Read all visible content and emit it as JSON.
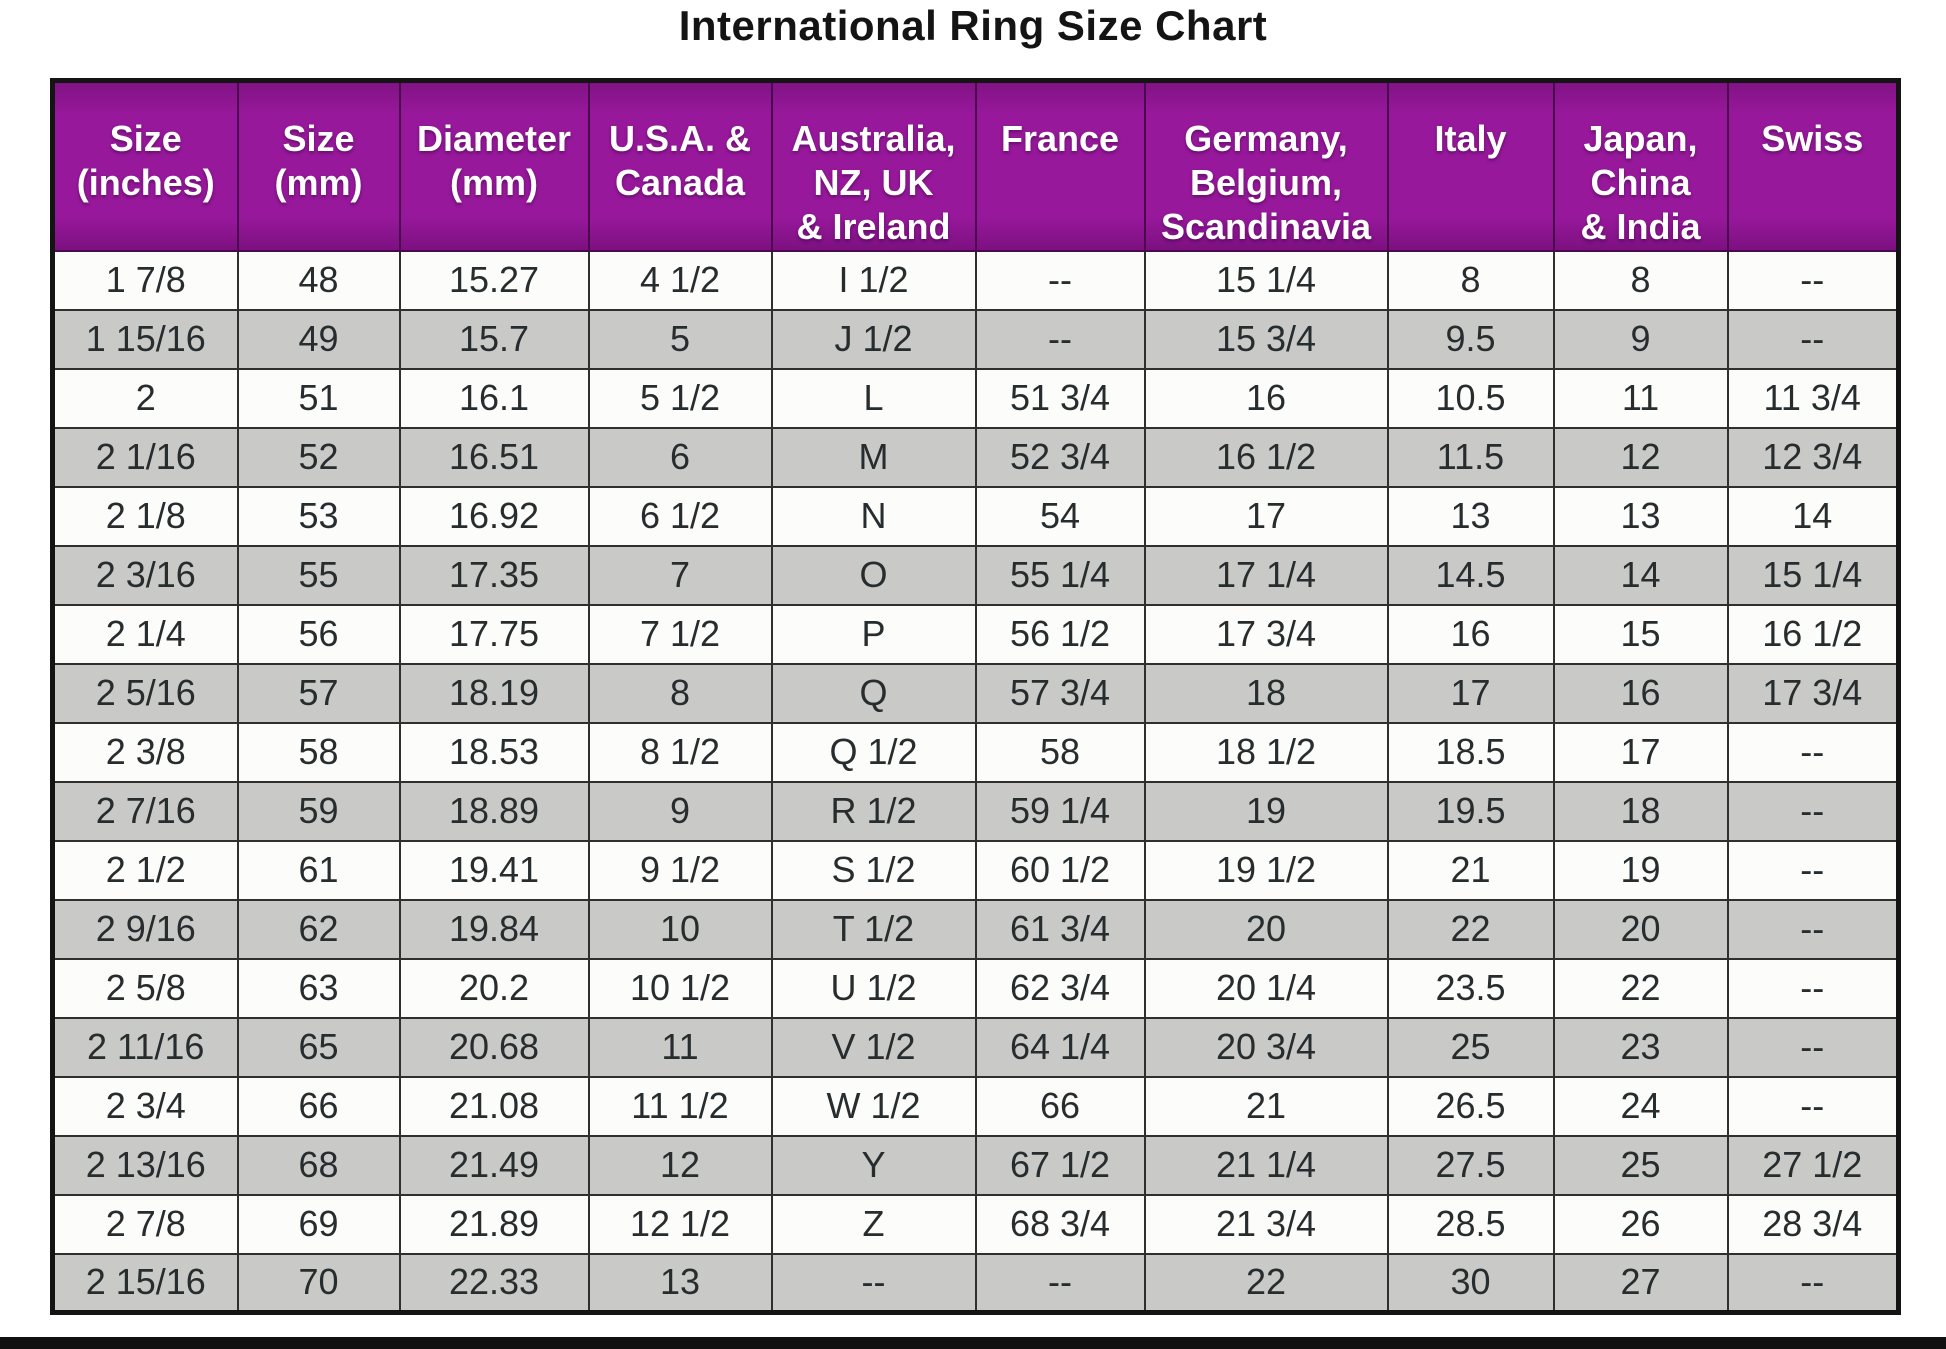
{
  "title": "International Ring Size Chart",
  "colors": {
    "header_bg": "#97189B",
    "header_text": "#FFFFFF",
    "row_bg": "#FCFCFA",
    "row_alt_bg": "#C9C9C7",
    "border": "#2F2F2F",
    "outer_border": "#141414",
    "text": "#272D2F"
  },
  "chart_data": {
    "type": "table",
    "title": "International Ring Size Chart",
    "columns": [
      "Size\n(inches)",
      "Size\n(mm)",
      "Diameter\n(mm)",
      "U.S.A. &\nCanada",
      "Australia,\nNZ, UK\n& Ireland",
      "France",
      "Germany,\nBelgium,\nScandinavia",
      "Italy",
      "Japan,\nChina\n& India",
      "Swiss"
    ],
    "rows": [
      [
        "1 7/8",
        "48",
        "15.27",
        "4 1/2",
        "I 1/2",
        "--",
        "15 1/4",
        "8",
        "8",
        "--"
      ],
      [
        "1 15/16",
        "49",
        "15.7",
        "5",
        "J 1/2",
        "--",
        "15 3/4",
        "9.5",
        "9",
        "--"
      ],
      [
        "2",
        "51",
        "16.1",
        "5 1/2",
        "L",
        "51 3/4",
        "16",
        "10.5",
        "11",
        "11 3/4"
      ],
      [
        "2 1/16",
        "52",
        "16.51",
        "6",
        "M",
        "52 3/4",
        "16 1/2",
        "11.5",
        "12",
        "12 3/4"
      ],
      [
        "2 1/8",
        "53",
        "16.92",
        "6 1/2",
        "N",
        "54",
        "17",
        "13",
        "13",
        "14"
      ],
      [
        "2 3/16",
        "55",
        "17.35",
        "7",
        "O",
        "55 1/4",
        "17 1/4",
        "14.5",
        "14",
        "15 1/4"
      ],
      [
        "2 1/4",
        "56",
        "17.75",
        "7 1/2",
        "P",
        "56 1/2",
        "17 3/4",
        "16",
        "15",
        "16 1/2"
      ],
      [
        "2 5/16",
        "57",
        "18.19",
        "8",
        "Q",
        "57 3/4",
        "18",
        "17",
        "16",
        "17 3/4"
      ],
      [
        "2 3/8",
        "58",
        "18.53",
        "8 1/2",
        "Q 1/2",
        "58",
        "18 1/2",
        "18.5",
        "17",
        "--"
      ],
      [
        "2 7/16",
        "59",
        "18.89",
        "9",
        "R 1/2",
        "59 1/4",
        "19",
        "19.5",
        "18",
        "--"
      ],
      [
        "2 1/2",
        "61",
        "19.41",
        "9 1/2",
        "S 1/2",
        "60 1/2",
        "19 1/2",
        "21",
        "19",
        "--"
      ],
      [
        "2 9/16",
        "62",
        "19.84",
        "10",
        "T 1/2",
        "61 3/4",
        "20",
        "22",
        "20",
        "--"
      ],
      [
        "2 5/8",
        "63",
        "20.2",
        "10 1/2",
        "U 1/2",
        "62 3/4",
        "20 1/4",
        "23.5",
        "22",
        "--"
      ],
      [
        "2 11/16",
        "65",
        "20.68",
        "11",
        "V 1/2",
        "64 1/4",
        "20 3/4",
        "25",
        "23",
        "--"
      ],
      [
        "2 3/4",
        "66",
        "21.08",
        "11 1/2",
        "W 1/2",
        "66",
        "21",
        "26.5",
        "24",
        "--"
      ],
      [
        "2 13/16",
        "68",
        "21.49",
        "12",
        "Y",
        "67 1/2",
        "21 1/4",
        "27.5",
        "25",
        "27 1/2"
      ],
      [
        "2 7/8",
        "69",
        "21.89",
        "12 1/2",
        "Z",
        "68 3/4",
        "21 3/4",
        "28.5",
        "26",
        "28 3/4"
      ],
      [
        "2 15/16",
        "70",
        "22.33",
        "13",
        "--",
        "--",
        "22",
        "30",
        "27",
        "--"
      ]
    ]
  }
}
